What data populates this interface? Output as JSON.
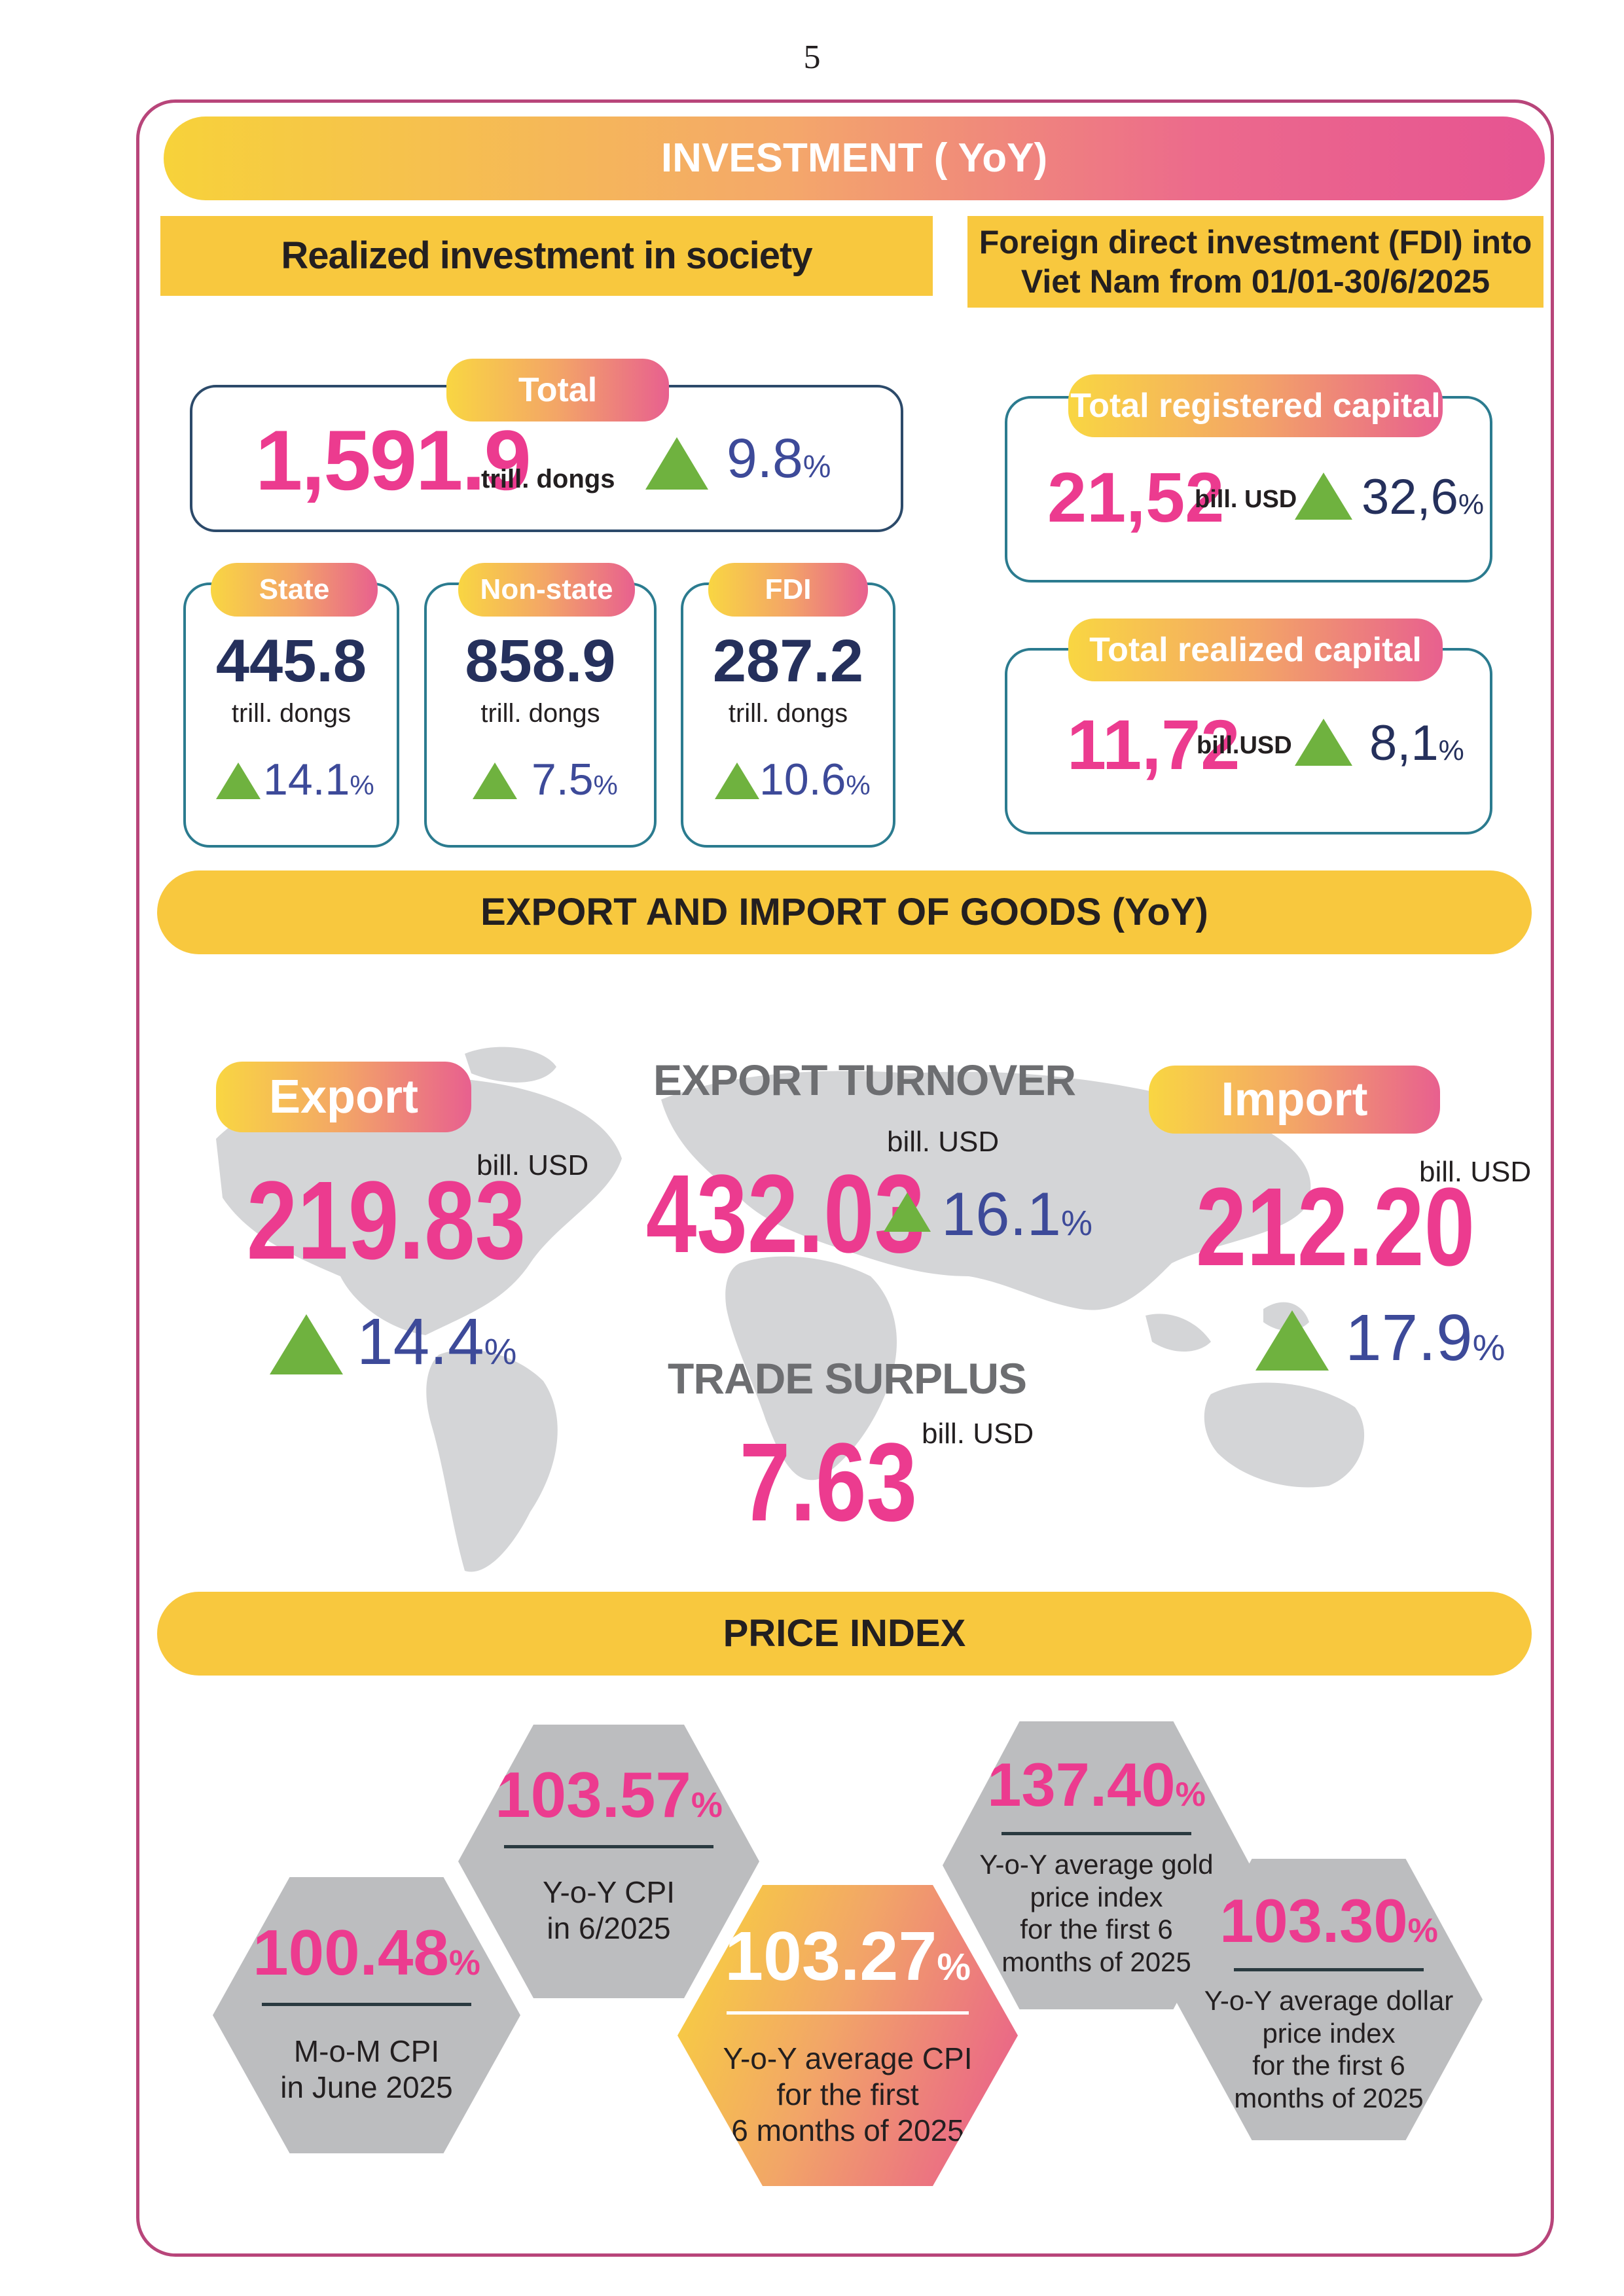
{
  "page_number": "5",
  "investment": {
    "title": "INVESTMENT ( YoY)",
    "realized": {
      "heading": "Realized investment in society",
      "total": {
        "label": "Total",
        "value": "1,591.9",
        "unit": "trill. dongs",
        "change": "9.8",
        "pct": "%"
      },
      "parts": [
        {
          "label": "State",
          "value": "445.8",
          "unit": "trill. dongs",
          "change": "14.1",
          "pct": "%"
        },
        {
          "label": "Non-state",
          "value": "858.9",
          "unit": "trill. dongs",
          "change": "7.5",
          "pct": "%"
        },
        {
          "label": "FDI",
          "value": "287.2",
          "unit": "trill. dongs",
          "change": "10.6",
          "pct": "%"
        }
      ]
    },
    "fdi": {
      "heading_line1": "Foreign direct investment (FDI) into",
      "heading_line2": "Viet Nam from 01/01-30/6/2025",
      "registered": {
        "label": "Total registered capital",
        "value": "21,52",
        "unit": "bill. USD",
        "change": "32,6",
        "pct": "%"
      },
      "realized": {
        "label": "Total realized capital",
        "value": "11,72",
        "unit": "bill.USD",
        "change": "8,1",
        "pct": "%"
      }
    }
  },
  "trade": {
    "title": "EXPORT AND IMPORT OF GOODS (YoY)",
    "export": {
      "label": "Export",
      "value": "219.83",
      "unit": "bill. USD",
      "change": "14.4",
      "pct": "%"
    },
    "turnover": {
      "label": "EXPORT TURNOVER",
      "value": "432.03",
      "unit": "bill. USD",
      "change": "16.1",
      "pct": "%"
    },
    "import": {
      "label": "Import",
      "value": "212.20",
      "unit": "bill. USD",
      "change": "17.9",
      "pct": "%"
    },
    "surplus": {
      "label": "TRADE SURPLUS",
      "value": "7.63",
      "unit": "bill. USD"
    }
  },
  "price": {
    "title": "PRICE INDEX",
    "items": [
      {
        "value": "100.48",
        "pct": "%",
        "line1": "M-o-M CPI",
        "line2": "in June 2025",
        "line3": "",
        "line4": ""
      },
      {
        "value": "103.57",
        "pct": "%",
        "line1": "Y-o-Y CPI",
        "line2": "in 6/2025",
        "line3": "",
        "line4": ""
      },
      {
        "value": "103.27",
        "pct": "%",
        "line1": "Y-o-Y average CPI",
        "line2": "for the first",
        "line3": "6 months of 2025",
        "line4": ""
      },
      {
        "value": "137.40",
        "pct": "%",
        "line1": "Y-o-Y average gold",
        "line2": "price index",
        "line3": "for the first 6",
        "line4": "months of 2025"
      },
      {
        "value": "103.30",
        "pct": "%",
        "line1": "Y-o-Y average dollar",
        "line2": "price index",
        "line3": "for the first 6",
        "line4": "months of 2025"
      }
    ]
  }
}
